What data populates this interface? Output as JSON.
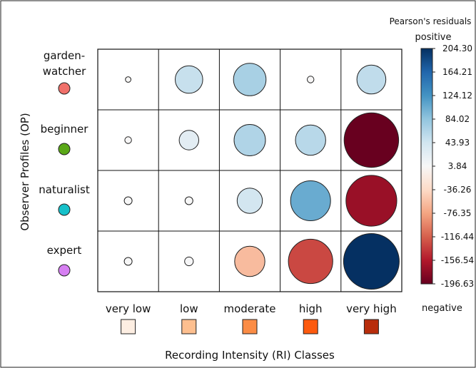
{
  "chart_data": {
    "type": "heatmap",
    "subtype": "balloon-plot",
    "title": "",
    "xlabel": "Recording Intensity (RI) Classes",
    "ylabel": "Observer Profiles (OP)",
    "x_categories": [
      "very low",
      "low",
      "moderate",
      "high",
      "very high"
    ],
    "y_categories": [
      {
        "label": "garden-watcher",
        "line1": "garden-",
        "line2": "watcher",
        "color": "#f0706a"
      },
      {
        "label": "beginner",
        "line1": "beginner",
        "line2": "",
        "color": "#5aa817"
      },
      {
        "label": "naturalist",
        "line1": "naturalist",
        "line2": "",
        "color": "#16c0c9"
      },
      {
        "label": "expert",
        "line1": "expert",
        "line2": "",
        "color": "#d67ff2"
      }
    ],
    "x_swatch_colors": [
      "#fdeee2",
      "#fdbf8f",
      "#fb8c45",
      "#fd5a0e",
      "#b82d0c"
    ],
    "values": [
      [
        2,
        50,
        70,
        3,
        55
      ],
      [
        3,
        25,
        65,
        60,
        -196
      ],
      [
        4,
        4,
        42,
        105,
        -170
      ],
      [
        4,
        5,
        -60,
        -130,
        204
      ]
    ],
    "legend": {
      "title": "Pearson's residuals",
      "top_label": "positive",
      "bottom_label": "negative",
      "placement": "right",
      "min": -196.63,
      "max": 204.3,
      "ticks": [
        "204.30",
        "164.21",
        "124.12",
        "84.02",
        "43.93",
        "3.84",
        "-36.26",
        "-76.35",
        "-116.44",
        "-156.54",
        "-196.63"
      ],
      "tick_values": [
        204.3,
        164.21,
        124.12,
        84.02,
        43.93,
        3.84,
        -36.26,
        -76.35,
        -116.44,
        -156.54,
        -196.63
      ],
      "stops": [
        "#67001f",
        "#b2182b",
        "#d6604d",
        "#f4a582",
        "#fddbc7",
        "#f7f7f7",
        "#d1e5f0",
        "#92c5de",
        "#4393c3",
        "#2166ac",
        "#053061"
      ]
    },
    "grid": true
  }
}
